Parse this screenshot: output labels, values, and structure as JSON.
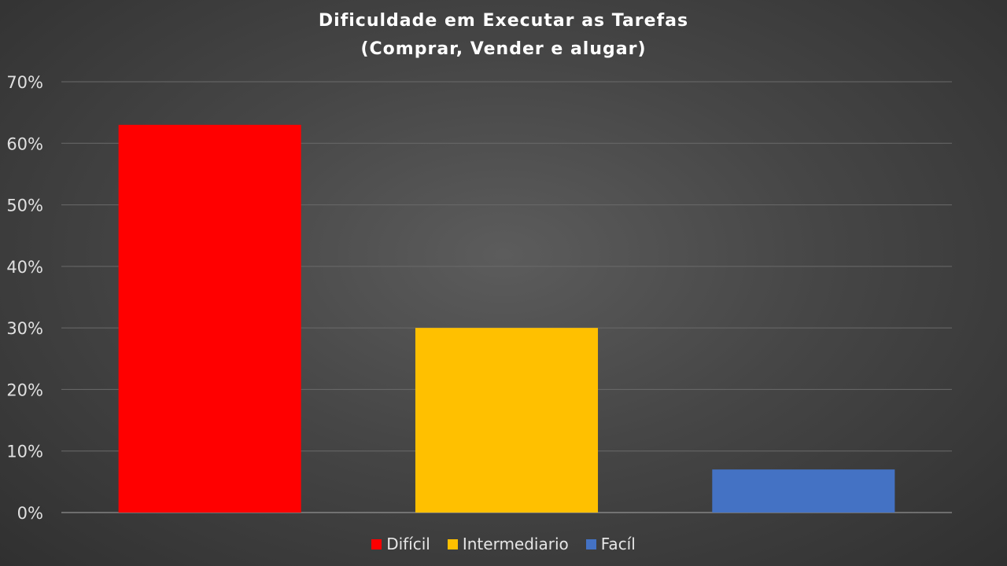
{
  "chart_data": {
    "type": "bar",
    "title_line1": "Dificuldade em Executar as Tarefas",
    "title_line2": "(Comprar, Vender e alugar)",
    "categories": [
      "Difícil",
      "Intermediario",
      "Facíl"
    ],
    "values": [
      63,
      30,
      7
    ],
    "colors": [
      "#ff0000",
      "#ffc000",
      "#4472c4"
    ],
    "yticks": [
      "0%",
      "10%",
      "20%",
      "30%",
      "40%",
      "50%",
      "60%",
      "70%"
    ],
    "ylim": [
      0,
      70
    ],
    "grid": true,
    "legend": "bottom-center"
  }
}
